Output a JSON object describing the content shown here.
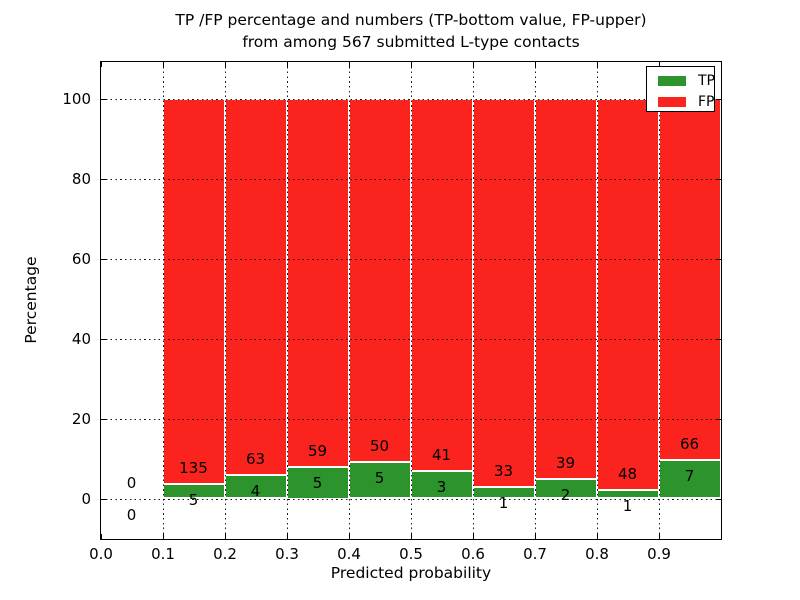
{
  "figure": {
    "title_line1": "TP /FP percentage and numbers (TP-bottom value, FP-upper)",
    "title_line2": "from among 567 submitted L-type contacts",
    "xlabel": "Predicted probability",
    "ylabel": "Percentage"
  },
  "legend": {
    "items": [
      {
        "label": "TP",
        "color": "#2d942d"
      },
      {
        "label": "FP",
        "color": "#fa231e"
      }
    ]
  },
  "chart_data": {
    "type": "bar",
    "stacked": true,
    "normalized": "percent (each bar sums to 100)",
    "title": "TP /FP percentage and numbers (TP-bottom value, FP-upper) from among 567 submitted L-type contacts",
    "xlabel": "Predicted probability",
    "ylabel": "Percentage",
    "total_contacts": 567,
    "bin_width": 0.1,
    "bin_starts": [
      0.0,
      0.1,
      0.2,
      0.3,
      0.4,
      0.5,
      0.6,
      0.7,
      0.8,
      0.9
    ],
    "series": [
      {
        "name": "TP",
        "color": "#2d942d",
        "counts": [
          0,
          5,
          4,
          5,
          5,
          3,
          1,
          2,
          1,
          7
        ]
      },
      {
        "name": "FP",
        "color": "#fa231e",
        "counts": [
          0,
          135,
          63,
          59,
          50,
          41,
          33,
          39,
          48,
          66
        ]
      }
    ],
    "tp_percent_of_bin": [
      0,
      3.57,
      5.97,
      7.81,
      9.09,
      6.82,
      2.94,
      4.88,
      2.04,
      9.59
    ],
    "xtick_labels": [
      "0.0",
      "0.1",
      "0.2",
      "0.3",
      "0.4",
      "0.5",
      "0.6",
      "0.7",
      "0.8",
      "0.9"
    ],
    "ytick_labels": [
      "0",
      "20",
      "40",
      "60",
      "80",
      "100"
    ],
    "ytick_values": [
      0,
      20,
      40,
      60,
      80,
      100
    ],
    "xlim": [
      0.0,
      1.0
    ],
    "ylim": [
      -9.5,
      109.5
    ],
    "grid": "dotted, drawn above bars",
    "bar_edge_color": "#ffffff",
    "legend_position": "upper right"
  }
}
